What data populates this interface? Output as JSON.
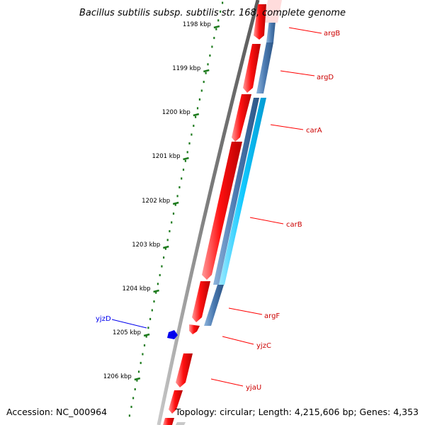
{
  "title": "Bacillus subtilis subsp. subtilis str. 168, complete genome",
  "accession": "Accession: NC_000964",
  "summary": "Topology: circular; Length: 4,215,606 bp; Genes: 4,353",
  "scale_labels": [
    "1198 kbp",
    "1199 kbp",
    "1200 kbp",
    "1201 kbp",
    "1202 kbp",
    "1203 kbp",
    "1204 kbp",
    "1205 kbp",
    "1206 kbp"
  ],
  "gene_labels": [
    "argB",
    "argD",
    "carA",
    "carB",
    "argF",
    "yjzC",
    "yjaU",
    "yjzD"
  ],
  "colors": {
    "backbone": "#808080",
    "forward_cds": "#ff0000",
    "forward_cds_highlight": "#ff9a9a",
    "reverse_feature": "#4a79b0",
    "cyan_feature": "#00c8ff",
    "scale_ticks": "#1e7b1e",
    "red_label": "#cc0000",
    "blue_feature": "#0000ee"
  }
}
